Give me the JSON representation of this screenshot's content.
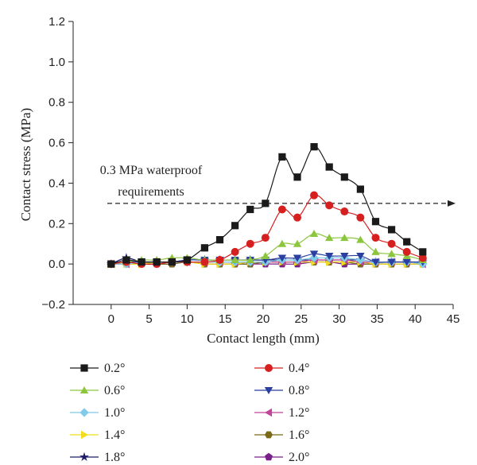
{
  "chart_data": {
    "type": "line",
    "xlabel": "Contact length (mm)",
    "ylabel": "Contact stress (MPa)",
    "xlim": [
      -5,
      45
    ],
    "ylim": [
      -0.2,
      1.2
    ],
    "xticks": [
      0,
      5,
      10,
      15,
      20,
      25,
      30,
      35,
      40,
      45
    ],
    "yticks": [
      -0.2,
      0.0,
      0.2,
      0.4,
      0.6,
      0.8,
      1.0,
      1.2
    ],
    "ytick_labels": [
      "−0.2",
      "0.0",
      "0.2",
      "0.4",
      "0.6",
      "0.8",
      "1.0",
      "1.2"
    ],
    "grid": false,
    "legend_position": "below",
    "reference_line": {
      "y": 0.3,
      "style": "dashed-arrow",
      "label_line1": "0.3 MPa waterproof",
      "label_line2": "requirements"
    },
    "series": [
      {
        "name": "0.2°",
        "color": "#1a1a1a",
        "marker": "square",
        "x": [
          0,
          2,
          4,
          6,
          8,
          10,
          12.3,
          14.3,
          16.3,
          18.3,
          20.3,
          22.5,
          24.5,
          26.7,
          28.7,
          30.7,
          32.8,
          34.8,
          36.9,
          38.9,
          41
        ],
        "y": [
          0.0,
          0.02,
          0.01,
          0.01,
          0.01,
          0.02,
          0.08,
          0.12,
          0.19,
          0.27,
          0.3,
          0.53,
          0.43,
          0.58,
          0.48,
          0.43,
          0.37,
          0.21,
          0.17,
          0.11,
          0.06
        ]
      },
      {
        "name": "0.4°",
        "color": "#d62020",
        "marker": "circle",
        "x": [
          0,
          2,
          4,
          6,
          8,
          10,
          12.3,
          14.3,
          16.3,
          18.3,
          20.3,
          22.5,
          24.5,
          26.7,
          28.7,
          30.7,
          32.8,
          34.8,
          36.9,
          38.9,
          41
        ],
        "y": [
          0.0,
          0.01,
          0.0,
          0.0,
          0.01,
          0.01,
          0.01,
          0.02,
          0.06,
          0.1,
          0.13,
          0.27,
          0.23,
          0.34,
          0.29,
          0.26,
          0.23,
          0.13,
          0.1,
          0.06,
          0.03
        ]
      },
      {
        "name": "0.6°",
        "color": "#8cc63f",
        "marker": "triangle-up",
        "x": [
          0,
          2,
          4,
          6,
          8,
          10,
          12.3,
          14.3,
          16.3,
          18.3,
          20.3,
          22.5,
          24.5,
          26.7,
          28.7,
          30.7,
          32.8,
          34.8,
          36.9,
          38.9,
          41
        ],
        "y": [
          0.0,
          0.01,
          0.02,
          0.02,
          0.03,
          0.03,
          0.02,
          0.02,
          0.02,
          0.02,
          0.04,
          0.1,
          0.1,
          0.15,
          0.13,
          0.13,
          0.12,
          0.06,
          0.05,
          0.04,
          0.02
        ]
      },
      {
        "name": "0.8°",
        "color": "#2a3fa0",
        "marker": "triangle-down",
        "x": [
          0,
          2,
          4,
          6,
          8,
          10,
          12.3,
          14.3,
          16.3,
          18.3,
          20.3,
          22.5,
          24.5,
          26.7,
          28.7,
          30.7,
          32.8,
          34.8,
          36.9,
          38.9,
          41
        ],
        "y": [
          0.0,
          0.01,
          0.01,
          0.01,
          0.01,
          0.02,
          0.02,
          0.02,
          0.02,
          0.02,
          0.02,
          0.03,
          0.03,
          0.05,
          0.04,
          0.04,
          0.04,
          0.01,
          0.01,
          0.01,
          0.01
        ]
      },
      {
        "name": "1.0°",
        "color": "#7fcbe8",
        "marker": "diamond",
        "x": [
          0,
          2,
          4,
          6,
          8,
          10,
          12.3,
          14.3,
          16.3,
          18.3,
          20.3,
          22.5,
          24.5,
          26.7,
          28.7,
          30.7,
          32.8,
          34.8,
          36.9,
          38.9,
          41
        ],
        "y": [
          0.0,
          0.0,
          0.01,
          0.01,
          0.01,
          0.01,
          0.01,
          0.01,
          0.01,
          0.01,
          0.01,
          0.02,
          0.02,
          0.03,
          0.03,
          0.03,
          0.02,
          0.01,
          0.01,
          0.01,
          0.0
        ]
      },
      {
        "name": "1.2°",
        "color": "#c0449a",
        "marker": "triangle-left",
        "x": [
          0,
          2,
          4,
          6,
          8,
          10,
          12.3,
          14.3,
          16.3,
          18.3,
          20.3,
          22.5,
          24.5,
          26.7,
          28.7,
          30.7,
          32.8,
          34.8,
          36.9,
          38.9,
          41
        ],
        "y": [
          0.0,
          0.0,
          0.01,
          0.01,
          0.01,
          0.01,
          0.01,
          0.01,
          0.01,
          0.01,
          0.01,
          0.01,
          0.01,
          0.02,
          0.02,
          0.02,
          0.01,
          0.01,
          0.01,
          0.01,
          0.0
        ]
      },
      {
        "name": "1.4°",
        "color": "#f2dd1c",
        "marker": "triangle-right",
        "x": [
          0,
          2,
          4,
          6,
          8,
          10,
          12.3,
          14.3,
          16.3,
          18.3,
          20.3,
          22.5,
          24.5,
          26.7,
          28.7,
          30.7,
          32.8,
          34.8,
          36.9,
          38.9,
          41
        ],
        "y": [
          0.0,
          0.0,
          0.0,
          0.01,
          0.01,
          0.01,
          0.0,
          0.0,
          0.0,
          0.01,
          0.01,
          0.01,
          0.01,
          0.01,
          0.01,
          0.01,
          0.01,
          0.0,
          0.0,
          0.0,
          0.0
        ]
      },
      {
        "name": "1.6°",
        "color": "#7a6a18",
        "marker": "hexagon",
        "x": [
          0,
          2,
          4,
          6,
          8,
          10,
          12.3,
          14.3,
          16.3,
          18.3,
          20.3,
          22.5,
          24.5,
          26.7,
          28.7,
          30.7,
          32.8,
          34.8,
          36.9,
          38.9,
          41
        ],
        "y": [
          0.0,
          0.0,
          0.0,
          0.0,
          0.0,
          0.01,
          0.0,
          0.0,
          0.0,
          0.0,
          0.01,
          0.01,
          0.01,
          0.01,
          0.01,
          0.01,
          0.0,
          0.0,
          0.0,
          0.0,
          0.0
        ]
      },
      {
        "name": "1.8°",
        "color": "#1c1c6b",
        "marker": "star",
        "x": [
          0,
          2,
          4,
          6,
          8,
          10,
          12.3,
          14.3,
          16.3,
          18.3,
          20.3,
          22.5,
          24.5,
          26.7,
          28.7,
          30.7,
          32.8,
          34.8,
          36.9,
          38.9,
          41
        ],
        "y": [
          0.0,
          0.03,
          0.01,
          0.01,
          0.01,
          0.02,
          0.02,
          0.02,
          0.02,
          0.02,
          0.02,
          0.02,
          0.02,
          0.02,
          0.02,
          0.02,
          0.02,
          0.01,
          0.01,
          0.01,
          0.01
        ]
      },
      {
        "name": "2.0°",
        "color": "#7a1e8a",
        "marker": "pentagon",
        "x": [
          0,
          2,
          4,
          6,
          8,
          10,
          12.3,
          14.3,
          16.3,
          18.3,
          20.3,
          22.5,
          24.5,
          26.7,
          28.7,
          30.7,
          32.8,
          34.8,
          36.9,
          38.9,
          41
        ],
        "y": [
          0.0,
          0.01,
          0.0,
          0.0,
          0.0,
          0.01,
          0.0,
          0.0,
          0.0,
          0.0,
          0.0,
          0.0,
          0.0,
          0.01,
          0.01,
          0.0,
          0.0,
          0.0,
          0.0,
          0.0,
          0.0
        ]
      }
    ]
  }
}
